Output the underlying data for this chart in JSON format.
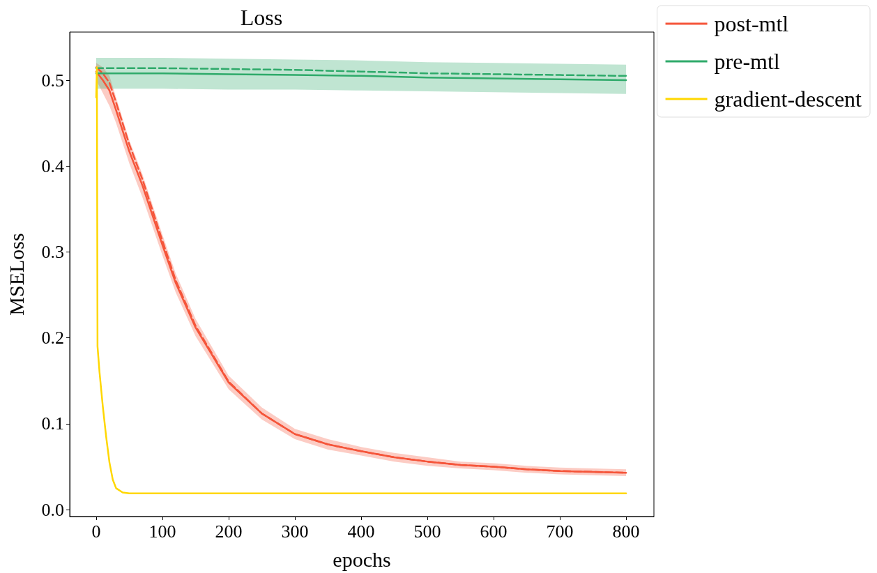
{
  "chart_data": {
    "type": "line",
    "title": "Loss",
    "xlabel": "epochs",
    "ylabel": "MSELoss",
    "xlim": [
      -40,
      842
    ],
    "ylim": [
      -0.008,
      0.556
    ],
    "xticks": [
      0,
      100,
      200,
      300,
      400,
      500,
      600,
      700,
      800
    ],
    "yticks": [
      {
        "value": 0,
        "label": "0.0"
      },
      0.1,
      0.2,
      0.3,
      0.4,
      0.5
    ],
    "grid": false,
    "legend": "top right",
    "marker": "none",
    "series": [
      {
        "name": "post-mtl",
        "color": "#f5553a",
        "line_style": "solid",
        "x": [
          0,
          10,
          20,
          30,
          50,
          70,
          100,
          120,
          150,
          200,
          250,
          300,
          350,
          400,
          450,
          500,
          550,
          600,
          650,
          700,
          750,
          800
        ],
        "values": [
          0.51,
          0.5,
          0.488,
          0.465,
          0.417,
          0.377,
          0.308,
          0.264,
          0.212,
          0.148,
          0.112,
          0.088,
          0.076,
          0.068,
          0.061,
          0.056,
          0.052,
          0.05,
          0.047,
          0.045,
          0.044,
          0.043
        ],
        "lower": [
          0.5,
          0.485,
          0.47,
          0.45,
          0.403,
          0.363,
          0.296,
          0.253,
          0.202,
          0.14,
          0.105,
          0.082,
          0.07,
          0.063,
          0.056,
          0.051,
          0.048,
          0.046,
          0.043,
          0.041,
          0.04,
          0.039
        ],
        "upper": [
          0.52,
          0.515,
          0.505,
          0.48,
          0.43,
          0.39,
          0.32,
          0.275,
          0.222,
          0.156,
          0.119,
          0.094,
          0.082,
          0.073,
          0.066,
          0.061,
          0.056,
          0.054,
          0.051,
          0.049,
          0.048,
          0.047
        ]
      },
      {
        "color": "#f5553a",
        "line_style": "dashed",
        "x": [
          0,
          10,
          20,
          30,
          50,
          70,
          100,
          120,
          150,
          200,
          250,
          300,
          350,
          400,
          450,
          500,
          550,
          600,
          650,
          700,
          750,
          800
        ],
        "values": [
          0.515,
          0.508,
          0.497,
          0.474,
          0.425,
          0.384,
          0.313,
          0.267,
          0.214,
          0.149,
          0.112,
          0.088,
          0.076,
          0.068,
          0.061,
          0.056,
          0.052,
          0.05,
          0.047,
          0.045,
          0.044,
          0.043
        ]
      },
      {
        "name": "pre-mtl",
        "color": "#2eaa6a",
        "line_style": "solid",
        "x": [
          0,
          100,
          200,
          300,
          400,
          500,
          600,
          700,
          800
        ],
        "values": [
          0.508,
          0.508,
          0.507,
          0.506,
          0.505,
          0.503,
          0.502,
          0.501,
          0.5
        ],
        "lower": [
          0.49,
          0.49,
          0.489,
          0.489,
          0.488,
          0.487,
          0.486,
          0.485,
          0.484
        ],
        "upper": [
          0.526,
          0.526,
          0.525,
          0.524,
          0.523,
          0.521,
          0.52,
          0.519,
          0.518
        ]
      },
      {
        "color": "#2eaa6a",
        "line_style": "dashed",
        "x": [
          0,
          100,
          200,
          300,
          400,
          500,
          600,
          700,
          800
        ],
        "values": [
          0.514,
          0.514,
          0.513,
          0.512,
          0.51,
          0.508,
          0.507,
          0.506,
          0.505
        ]
      },
      {
        "name": "gradient-descent",
        "color": "#ffd700",
        "line_style": "solid",
        "x": [
          0,
          1,
          2,
          5,
          10,
          15,
          20,
          25,
          30,
          40,
          50,
          100,
          200,
          300,
          400,
          500,
          600,
          700,
          800
        ],
        "values": [
          0.48,
          0.515,
          0.19,
          0.16,
          0.12,
          0.085,
          0.055,
          0.035,
          0.025,
          0.02,
          0.019,
          0.019,
          0.019,
          0.019,
          0.019,
          0.019,
          0.019,
          0.019,
          0.019
        ]
      }
    ]
  }
}
